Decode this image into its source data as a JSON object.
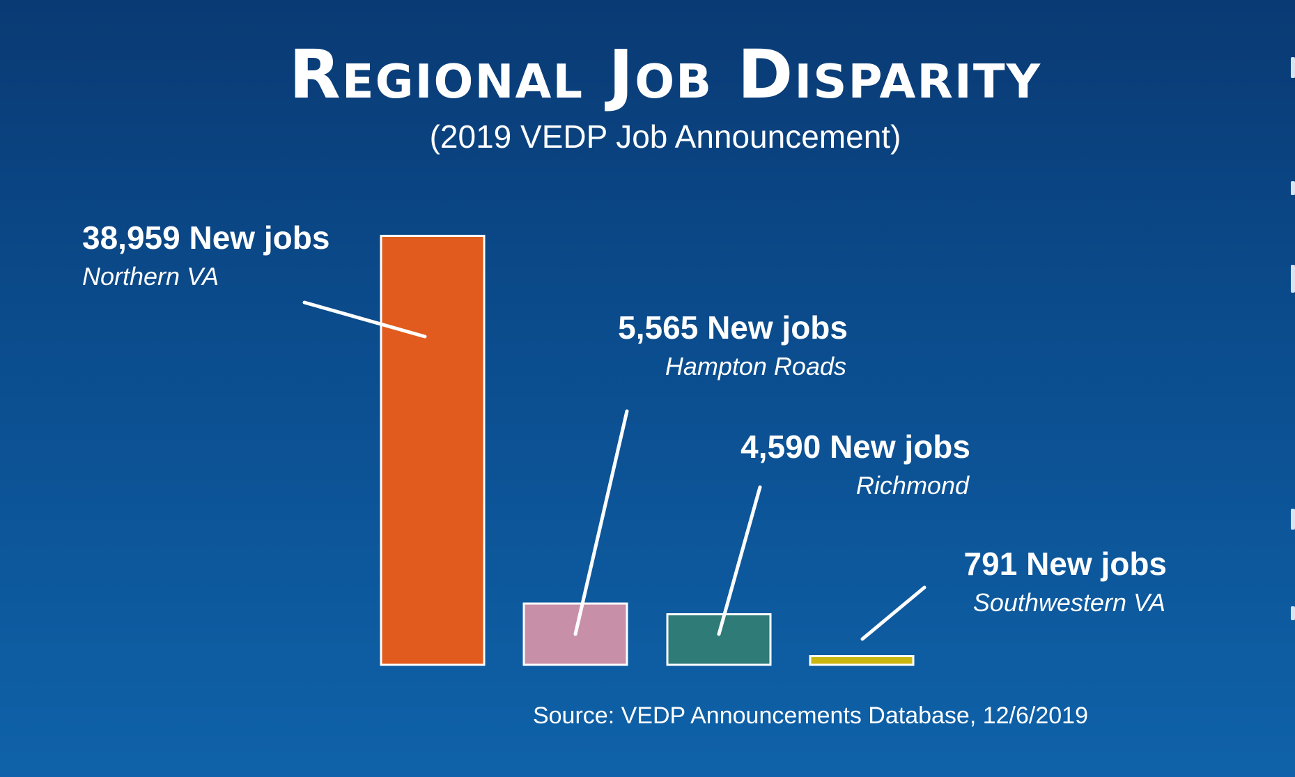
{
  "chart_data": {
    "type": "bar",
    "title": "Regional Job Disparity",
    "subtitle": "(2019 VEDP Job Announcement)",
    "source": "Source: VEDP Announcements Database, 12/6/2019",
    "ylim": [
      0,
      40000
    ],
    "grid": false,
    "categories": [
      "Northern VA",
      "Hampton Roads",
      "Richmond",
      "Southwestern VA"
    ],
    "values": [
      38959,
      5565,
      4590,
      791
    ],
    "value_labels": [
      "38,959 New jobs",
      "5,565 New jobs",
      "4,590 New jobs",
      "791 New jobs"
    ],
    "colors": [
      "#e05b1d",
      "#c890a8",
      "#2e7b78",
      "#c9b611"
    ]
  }
}
